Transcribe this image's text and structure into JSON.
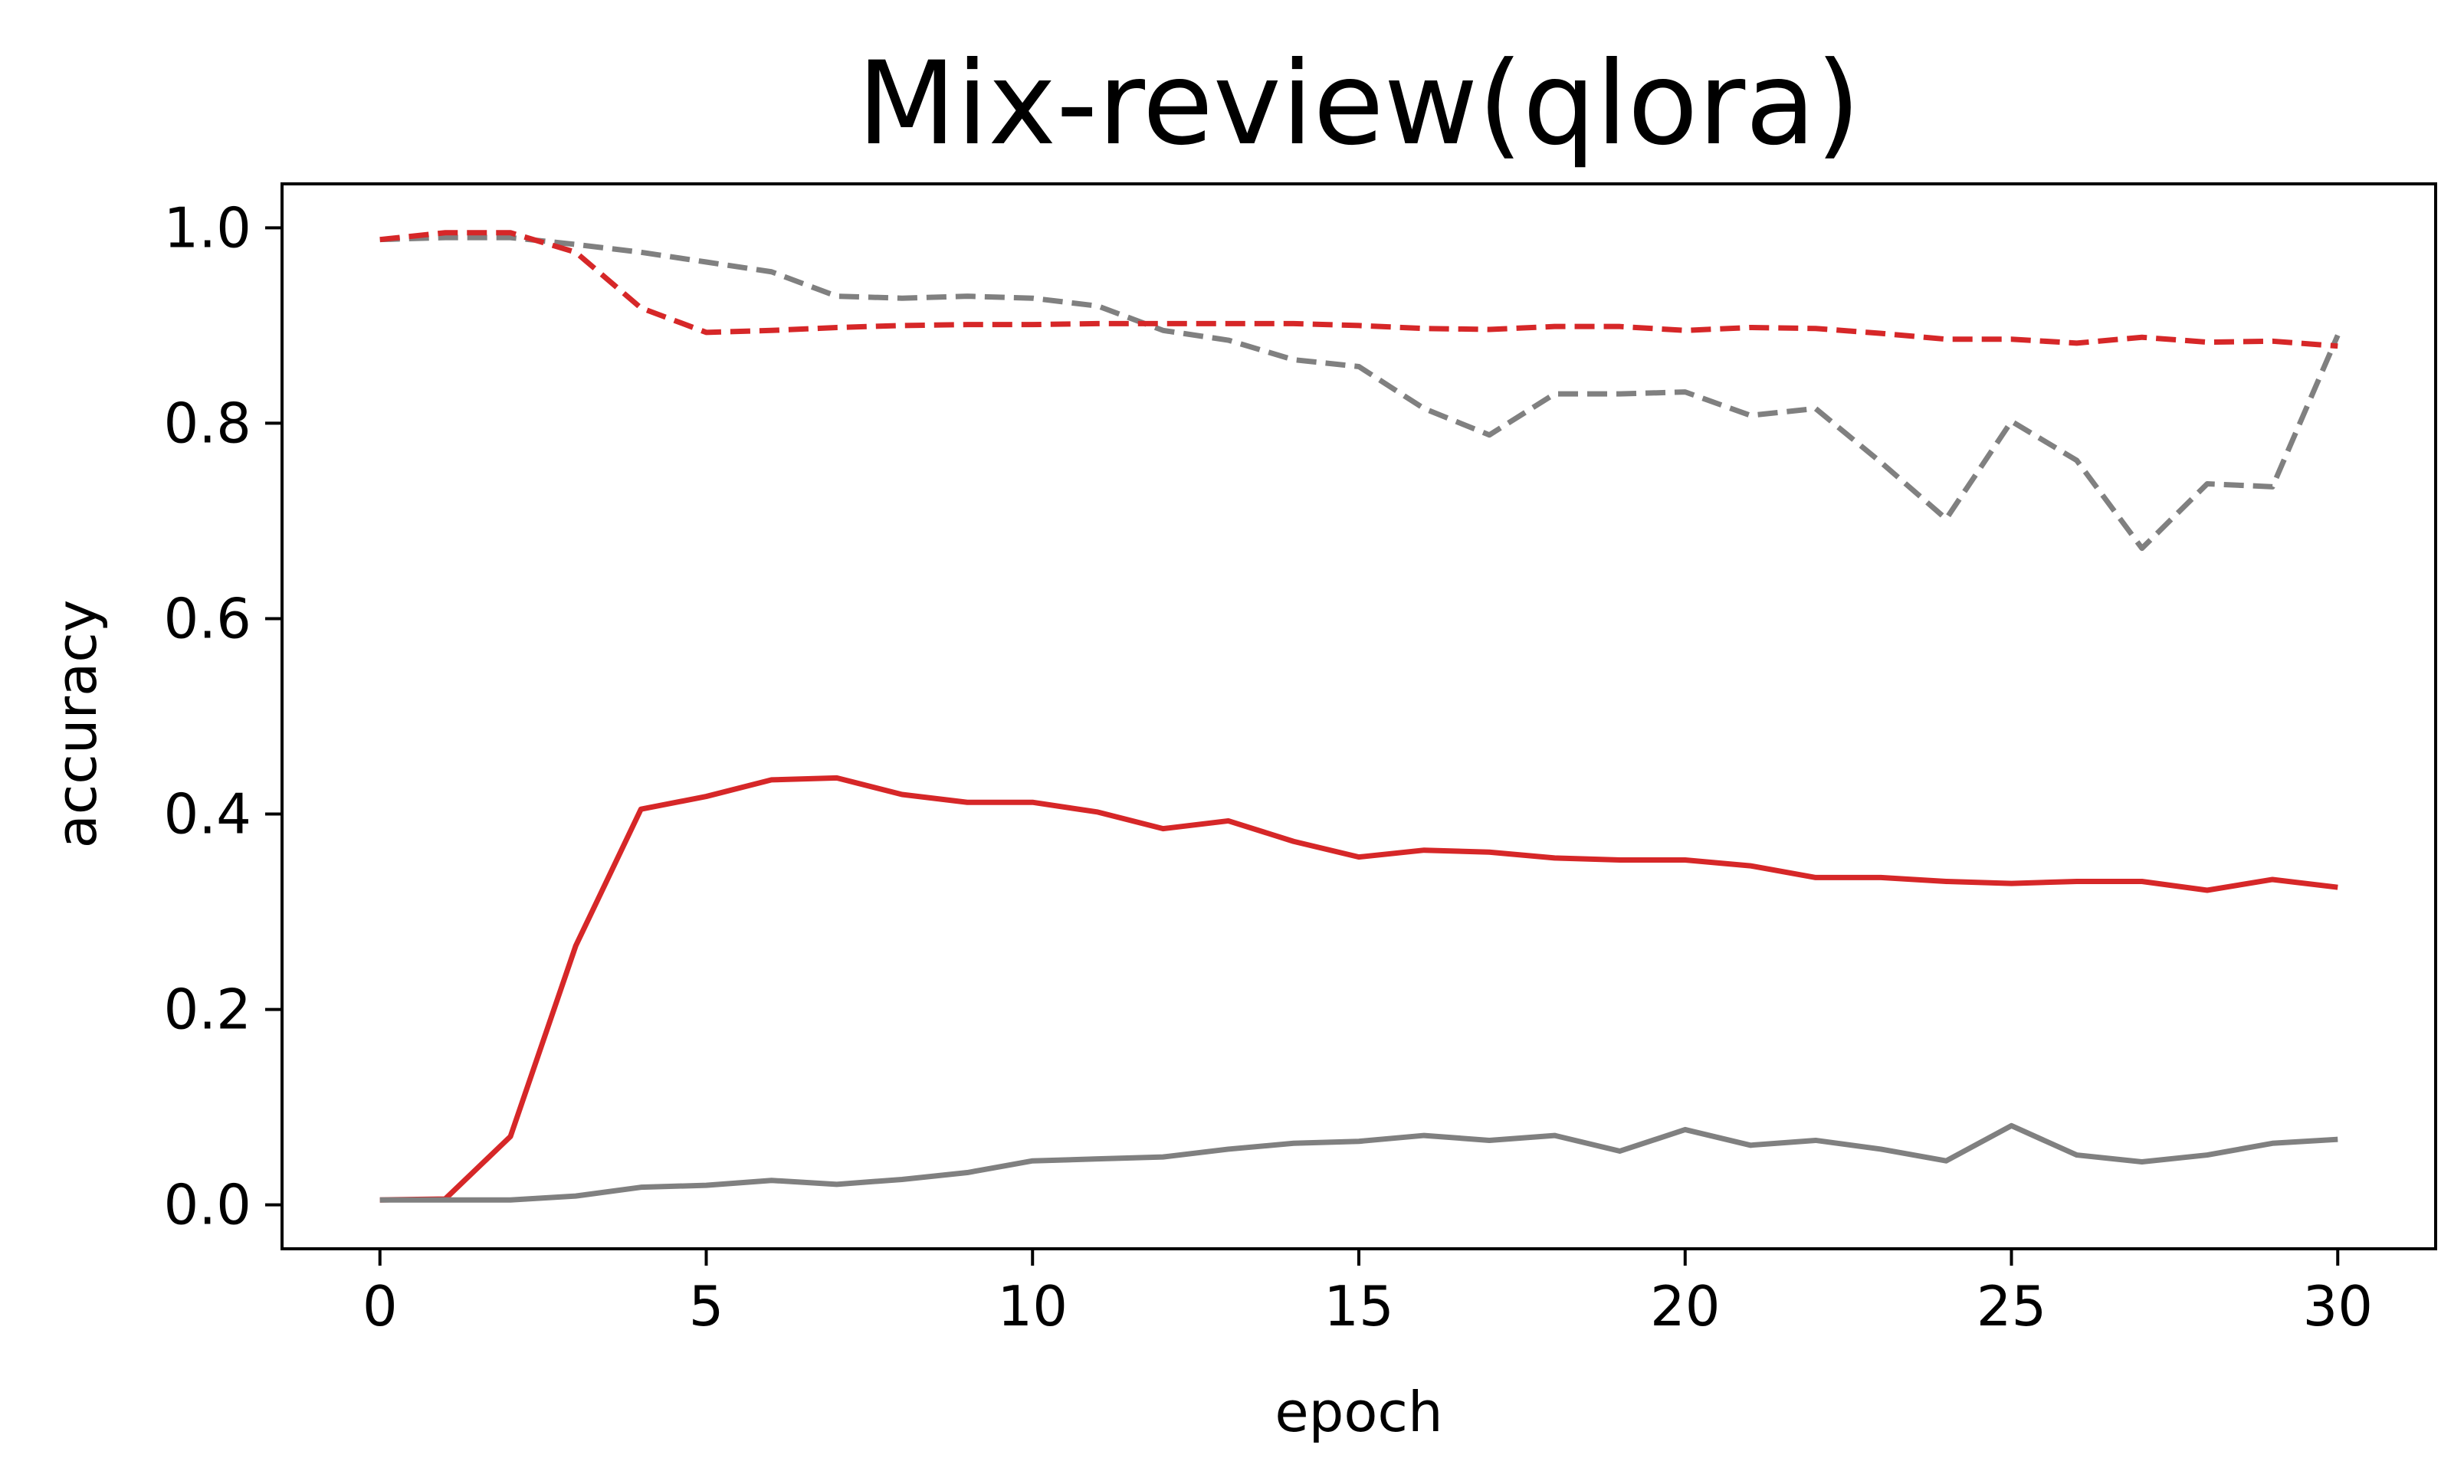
{
  "chart_data": {
    "type": "line",
    "title": "Mix-review(qlora)",
    "xlabel": "epoch",
    "ylabel": "accuracy",
    "xlim": [
      -1.5,
      31.5
    ],
    "ylim": [
      -0.045,
      1.045
    ],
    "xticks": [
      0,
      5,
      10,
      15,
      20,
      25,
      30
    ],
    "xtick_labels": [
      "0",
      "5",
      "10",
      "15",
      "20",
      "25",
      "30"
    ],
    "yticks": [
      0.0,
      0.2,
      0.4,
      0.6,
      0.8,
      1.0
    ],
    "ytick_labels": [
      "0.0",
      "0.2",
      "0.4",
      "0.6",
      "0.8",
      "1.0"
    ],
    "grid": false,
    "legend": false,
    "x": [
      0,
      1,
      2,
      3,
      4,
      5,
      6,
      7,
      8,
      9,
      10,
      11,
      12,
      13,
      14,
      15,
      16,
      17,
      18,
      19,
      20,
      21,
      22,
      23,
      24,
      25,
      26,
      27,
      28,
      29,
      30
    ],
    "series": [
      {
        "color": "#808080",
        "linestyle": "dashed",
        "values": [
          0.988,
          0.99,
          0.99,
          0.983,
          0.975,
          0.965,
          0.955,
          0.93,
          0.928,
          0.93,
          0.928,
          0.92,
          0.895,
          0.885,
          0.865,
          0.858,
          0.815,
          0.788,
          0.83,
          0.83,
          0.832,
          0.808,
          0.815,
          0.76,
          0.702,
          0.802,
          0.762,
          0.672,
          0.738,
          0.735,
          0.89
        ]
      },
      {
        "color": "#d62728",
        "linestyle": "dashed",
        "values": [
          0.988,
          0.995,
          0.995,
          0.975,
          0.918,
          0.893,
          0.895,
          0.898,
          0.9,
          0.901,
          0.901,
          0.902,
          0.902,
          0.902,
          0.902,
          0.9,
          0.897,
          0.896,
          0.899,
          0.899,
          0.895,
          0.898,
          0.897,
          0.892,
          0.886,
          0.886,
          0.882,
          0.888,
          0.883,
          0.884,
          0.879
        ]
      },
      {
        "color": "#d62728",
        "linestyle": "solid",
        "values": [
          0.005,
          0.006,
          0.07,
          0.265,
          0.405,
          0.418,
          0.435,
          0.437,
          0.42,
          0.412,
          0.412,
          0.402,
          0.385,
          0.393,
          0.372,
          0.356,
          0.363,
          0.361,
          0.355,
          0.353,
          0.353,
          0.347,
          0.335,
          0.335,
          0.331,
          0.329,
          0.331,
          0.331,
          0.322,
          0.333,
          0.325
        ]
      },
      {
        "color": "#808080",
        "linestyle": "solid",
        "values": [
          0.005,
          0.005,
          0.005,
          0.009,
          0.018,
          0.02,
          0.025,
          0.021,
          0.026,
          0.033,
          0.045,
          0.047,
          0.049,
          0.057,
          0.063,
          0.065,
          0.071,
          0.066,
          0.071,
          0.055,
          0.077,
          0.061,
          0.066,
          0.057,
          0.045,
          0.081,
          0.051,
          0.044,
          0.051,
          0.063,
          0.067
        ]
      }
    ]
  }
}
